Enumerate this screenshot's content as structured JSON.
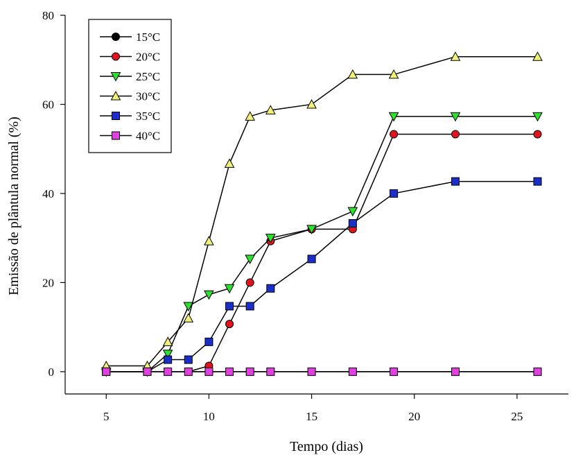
{
  "chart_data": {
    "type": "line",
    "title": "",
    "xlabel": "Tempo (dias)",
    "ylabel": "Emissão de plântula normal (%)",
    "xlim": [
      3,
      27.5
    ],
    "ylim": [
      -5,
      80
    ],
    "xticks": [
      5,
      10,
      15,
      20,
      25
    ],
    "yticks": [
      0,
      20,
      40,
      60,
      80
    ],
    "x": [
      5,
      7,
      8,
      9,
      10,
      11,
      12,
      13,
      15,
      17,
      19,
      22,
      26
    ],
    "legend_position": "top-left",
    "grid": false,
    "series": [
      {
        "name": "15°C",
        "marker": "circle",
        "color": "#000000",
        "values": [
          0,
          0,
          0,
          0,
          0,
          0,
          0,
          0,
          0,
          0,
          0,
          0,
          0
        ]
      },
      {
        "name": "20°C",
        "marker": "circle",
        "color": "#e0141e",
        "values": [
          0,
          0,
          0,
          0,
          1.3,
          10.7,
          20,
          29.3,
          32,
          32,
          53.3,
          53.3,
          53.3
        ]
      },
      {
        "name": "25°C",
        "marker": "triangle-down",
        "color": "#2ee02e",
        "values": [
          0,
          0,
          4,
          14.7,
          17.3,
          18.7,
          25.3,
          30,
          32,
          36,
          57.3,
          57.3,
          57.3
        ]
      },
      {
        "name": "30°C",
        "marker": "triangle-up",
        "color": "#f0f078",
        "values": [
          1.3,
          1.3,
          6.7,
          12,
          29.3,
          46.7,
          57.3,
          58.7,
          60,
          66.7,
          66.7,
          70.7,
          70.7
        ]
      },
      {
        "name": "35°C",
        "marker": "square",
        "color": "#1c2ec8",
        "values": [
          0,
          0,
          2.7,
          2.7,
          6.7,
          14.7,
          14.7,
          18.7,
          25.3,
          33.3,
          40,
          42.7,
          42.7
        ]
      },
      {
        "name": "40°C",
        "marker": "square",
        "color": "#e040e0",
        "values": [
          0,
          0,
          0,
          0,
          0,
          0,
          0,
          0,
          0,
          0,
          0,
          0,
          0
        ]
      }
    ]
  }
}
